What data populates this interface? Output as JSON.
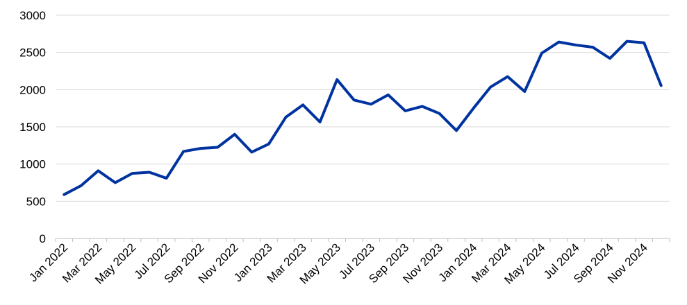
{
  "chart_data": {
    "type": "line",
    "title": "",
    "xlabel": "",
    "ylabel": "",
    "ylim": [
      0,
      3000
    ],
    "yticks": [
      0,
      500,
      1000,
      1500,
      2000,
      2500,
      3000
    ],
    "grid": "horizontal",
    "legend": "none",
    "x": [
      "Jan 2022",
      "Feb 2022",
      "Mar 2022",
      "Apr 2022",
      "May 2022",
      "Jun 2022",
      "Jul 2022",
      "Aug 2022",
      "Sep 2022",
      "Oct 2022",
      "Nov 2022",
      "Dec 2022",
      "Jan 2023",
      "Feb 2023",
      "Mar 2023",
      "Apr 2023",
      "May 2023",
      "Jun 2023",
      "Jul 2023",
      "Aug 2023",
      "Sep 2023",
      "Oct 2023",
      "Nov 2023",
      "Dec 2023",
      "Jan 2024",
      "Feb 2024",
      "Mar 2024",
      "Apr 2024",
      "May 2024",
      "Jun 2024",
      "Jul 2024",
      "Aug 2024",
      "Sep 2024",
      "Oct 2024",
      "Nov 2024",
      "Dec 2024"
    ],
    "xtick_labels": [
      "Jan 2022",
      "Mar 2022",
      "May 2022",
      "Jul 2022",
      "Sep 2022",
      "Nov 2022",
      "Jan 2023",
      "Mar 2023",
      "May 2023",
      "Jul 2023",
      "Sep 2023",
      "Nov 2023",
      "Jan 2024",
      "Mar 2024",
      "May 2024",
      "Jul 2024",
      "Sep 2024",
      "Nov 2024"
    ],
    "series": [
      {
        "color": "#0033a0",
        "values": [
          590,
          710,
          910,
          750,
          875,
          890,
          810,
          1170,
          1210,
          1225,
          1400,
          1160,
          1270,
          1630,
          1795,
          1565,
          2135,
          1860,
          1805,
          1930,
          1715,
          1775,
          1680,
          1450,
          1750,
          2035,
          2175,
          1975,
          2490,
          2640,
          2600,
          2570,
          2420,
          2650,
          2630,
          2055
        ]
      }
    ]
  }
}
